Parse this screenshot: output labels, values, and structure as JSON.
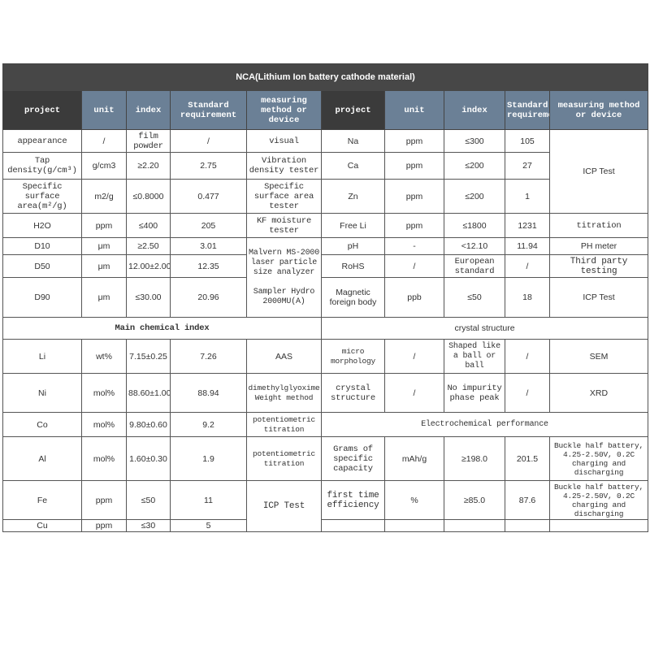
{
  "title": "NCA(Lithium Ion battery cathode material)",
  "header_left": [
    "project",
    "unit",
    "index",
    "Standard requirement",
    "measuring method or device"
  ],
  "header_right": [
    "project",
    "unit",
    "index",
    "Standard requirement",
    "measuring method or device"
  ],
  "left": [
    [
      "appearance",
      "/",
      "film powder",
      "/",
      "visual"
    ],
    [
      "Tap density(g/cm³)",
      "g/cm3",
      "≥2.20",
      "2.75",
      "Vibration density tester"
    ],
    [
      "Specific surface area(m²/g)",
      "m2/g",
      "≤0.8000",
      "0.477",
      "Specific surface area tester"
    ],
    [
      "H2O",
      "ppm",
      "≤400",
      "205",
      "KF moisture tester"
    ],
    [
      "D10",
      "μm",
      "≥2.50",
      "3.01"
    ],
    [
      "D50",
      "μm",
      "12.00±2.00",
      "12.35"
    ],
    [
      "D90",
      "μm",
      "≤30.00",
      "20.96"
    ]
  ],
  "laser_method": "Malvern MS-2000 laser particle size analyzer",
  "laser_sampler": "Sampler Hydro 2000MU(A)",
  "right": [
    [
      "Na",
      "ppm",
      "≤300",
      "105"
    ],
    [
      "Ca",
      "ppm",
      "≤200",
      "27"
    ],
    [
      "Zn",
      "ppm",
      "≤200",
      "1"
    ],
    [
      "Free Li",
      "ppm",
      "≤1800",
      "1231",
      "titration"
    ],
    [
      "pH",
      "-",
      "<12.10",
      "11.94",
      "PH meter"
    ],
    [
      "RoHS",
      "/",
      "European standard",
      "/",
      "Third party testing"
    ],
    [
      "Magnetic foreign body",
      "ppb",
      "≤50",
      "18",
      "ICP Test"
    ]
  ],
  "icp_method": "ICP Test",
  "section_chem": "Main chemical index",
  "section_crystal": "crystal structure",
  "chem": [
    [
      "Li",
      "wt%",
      "7.15±0.25",
      "7.26",
      "AAS"
    ],
    [
      "Ni",
      "mol%",
      "88.60±1.00",
      "88.94",
      "dimethylglyoxime Weight method"
    ],
    [
      "Co",
      "mol%",
      "9.80±0.60",
      "9.2",
      "potentiometric titration"
    ],
    [
      "Al",
      "mol%",
      "1.60±0.30",
      "1.9",
      "potentiometric titration"
    ],
    [
      "Fe",
      "ppm",
      "≤50",
      "11"
    ],
    [
      "Cu",
      "ppm",
      "≤30",
      "5"
    ]
  ],
  "chem_icp": "ICP Test",
  "crystal": [
    [
      "micro morphology",
      "/",
      "Shaped like a ball or ball",
      "/",
      "SEM"
    ],
    [
      "crystal structure",
      "/",
      "No impurity phase peak",
      "/",
      "XRD"
    ]
  ],
  "section_electro": "Electrochemical performance",
  "electro": [
    [
      "Grams of specific capacity",
      "mAh/g",
      "≥198.0",
      "201.5",
      "Buckle half battery, 4.25-2.50V, 0.2C charging and discharging"
    ],
    [
      "first time efficiency",
      "%",
      "≥85.0",
      "87.6",
      "Buckle half battery, 4.25-2.50V, 0.2C charging and discharging"
    ]
  ]
}
